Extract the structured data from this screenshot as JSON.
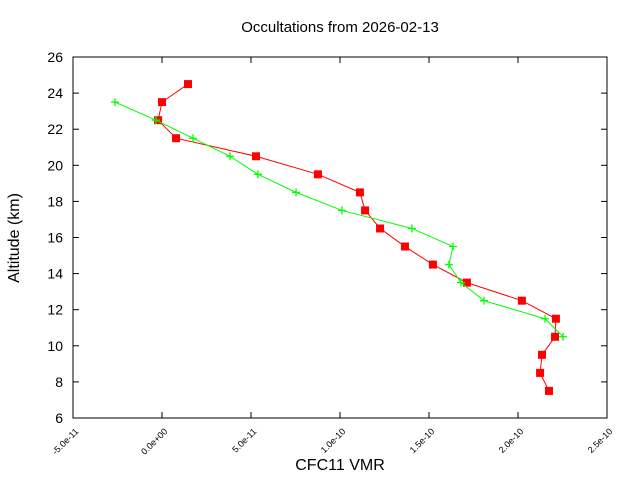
{
  "chart_data": {
    "type": "line",
    "title": "Occultations from 2026-02-13",
    "xlabel": "CFC11 VMR",
    "ylabel": "Altitude (km)",
    "xlim": [
      -5e-11,
      2.5e-10
    ],
    "ylim": [
      6,
      26
    ],
    "xticks": [
      -5e-11,
      0,
      5e-11,
      1e-10,
      1.5e-10,
      2e-10,
      2.5e-10
    ],
    "xtick_labels": [
      "-5.0e-11",
      "0.0e+00",
      "5.0e-11",
      "1.0e-10",
      "1.5e-10",
      "2.0e-10",
      "2.5e-10"
    ],
    "yticks": [
      6,
      8,
      10,
      12,
      14,
      16,
      18,
      20,
      22,
      24,
      26
    ],
    "ytick_labels": [
      "6",
      "8",
      "10",
      "12",
      "14",
      "16",
      "18",
      "20",
      "22",
      "24",
      "26"
    ],
    "grid": false,
    "series": [
      {
        "color": "#ff0000",
        "marker": "square",
        "points": [
          [
            1.46e-11,
            24.5
          ],
          [
            0.0,
            23.5
          ],
          [
            -2.2e-12,
            22.5
          ],
          [
            7.9e-12,
            21.5
          ],
          [
            5.28e-11,
            20.5
          ],
          [
            8.76e-11,
            19.5
          ],
          [
            1.112e-10,
            18.5
          ],
          [
            1.141e-10,
            17.5
          ],
          [
            1.225e-10,
            16.5
          ],
          [
            1.365e-10,
            15.5
          ],
          [
            1.522e-10,
            14.5
          ],
          [
            1.713e-10,
            13.5
          ],
          [
            2.022e-10,
            12.5
          ],
          [
            2.213e-10,
            11.5
          ],
          [
            2.208e-10,
            10.5
          ],
          [
            2.135e-10,
            9.5
          ],
          [
            2.124e-10,
            8.5
          ],
          [
            2.174e-10,
            7.5
          ]
        ]
      },
      {
        "color": "#00ff00",
        "marker": "plus",
        "points": [
          [
            -2.64e-11,
            23.5
          ],
          [
            -3.4e-12,
            22.5
          ],
          [
            1.74e-11,
            21.5
          ],
          [
            3.82e-11,
            20.5
          ],
          [
            5.39e-11,
            19.5
          ],
          [
            7.53e-11,
            18.5
          ],
          [
            1.011e-10,
            17.5
          ],
          [
            1.404e-10,
            16.5
          ],
          [
            1.635e-10,
            15.5
          ],
          [
            1.612e-10,
            14.5
          ],
          [
            1.68e-10,
            13.5
          ],
          [
            1.809e-10,
            12.5
          ],
          [
            2.152e-10,
            11.5
          ],
          [
            2.253e-10,
            10.5
          ]
        ]
      }
    ]
  }
}
